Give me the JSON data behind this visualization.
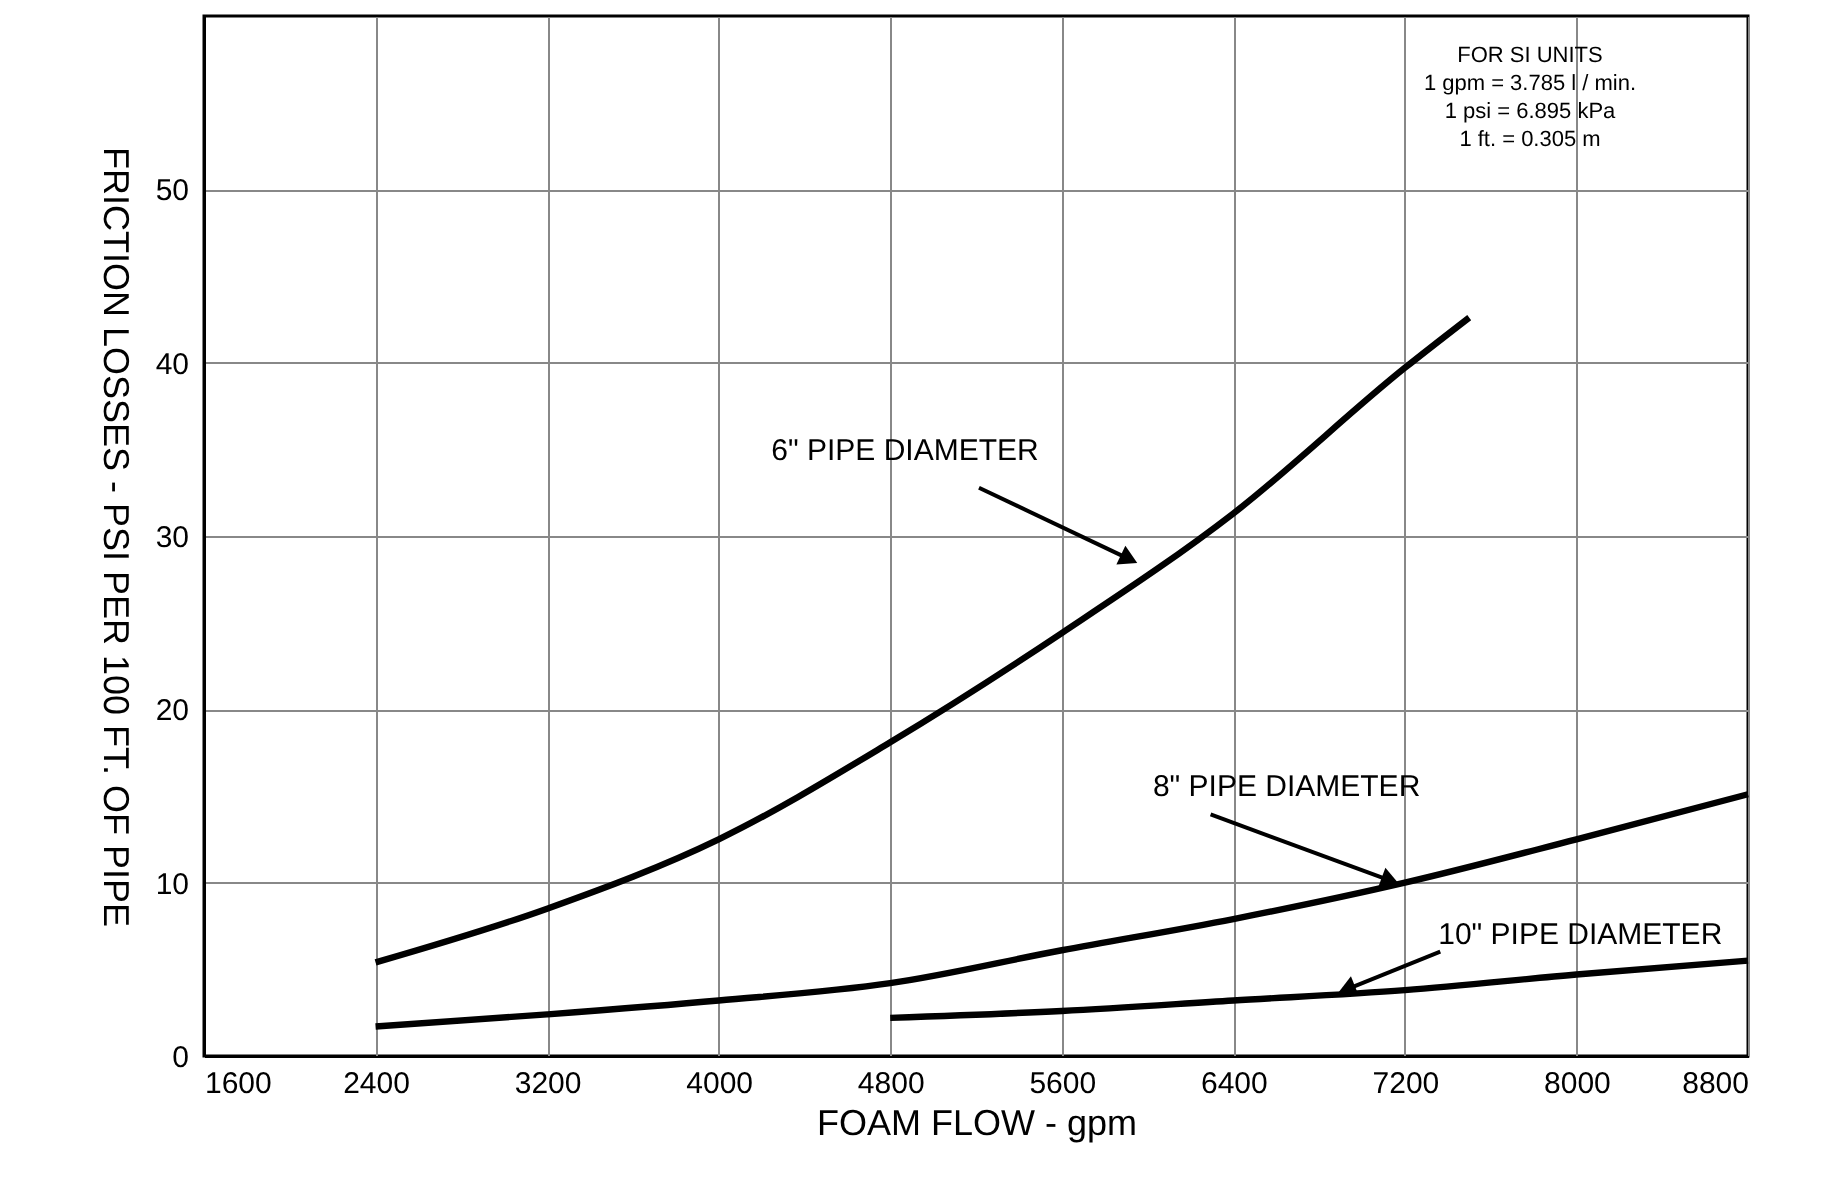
{
  "chart_data": {
    "type": "line",
    "xlabel": "FOAM FLOW - gpm",
    "ylabel": "FRICTION LOSSES - PSI PER 100 FT. OF PIPE",
    "xlim": [
      1600,
      8800
    ],
    "xticks": [
      1600,
      2400,
      3200,
      4000,
      4800,
      5600,
      6400,
      7200,
      8000,
      8800
    ],
    "ylim": [
      0,
      60
    ],
    "yticks": [
      0,
      10,
      20,
      30,
      40,
      50
    ],
    "grid": true,
    "line_style": "solid",
    "marker": "none",
    "series": [
      {
        "color": "#000000",
        "x": [
          2400,
          3200,
          4000,
          4800,
          5600,
          6400,
          7200,
          7500
        ],
        "values": [
          5.4,
          8.5,
          12.5,
          18.1,
          24.4,
          31.3,
          39.7,
          42.6
        ]
      },
      {
        "color": "#000000",
        "x": [
          2400,
          3200,
          4000,
          4800,
          5600,
          6400,
          7200,
          8000,
          8800
        ],
        "values": [
          1.7,
          2.4,
          3.2,
          4.2,
          6.1,
          7.9,
          10.0,
          12.5,
          15.1
        ]
      },
      {
        "color": "#000000",
        "x": [
          4800,
          5600,
          6400,
          7200,
          8000,
          8800
        ],
        "values": [
          2.2,
          2.6,
          3.2,
          3.8,
          4.7,
          5.5
        ]
      }
    ],
    "annotations": [
      {
        "text": "6\" PIPE DIAMETER",
        "x": 5960,
        "y": 28.4
      },
      {
        "text": "8\" PIPE DIAMETER",
        "x": 7180,
        "y": 9.9
      },
      {
        "text": "10\" PIPE DIAMETER",
        "x": 6880,
        "y": 3.6
      },
      "FOR SI UNITS\n1 gpm = 3.785 l / min.\n1 psi = 6.895 kPa\n1 ft. = 0.305 m"
    ]
  }
}
